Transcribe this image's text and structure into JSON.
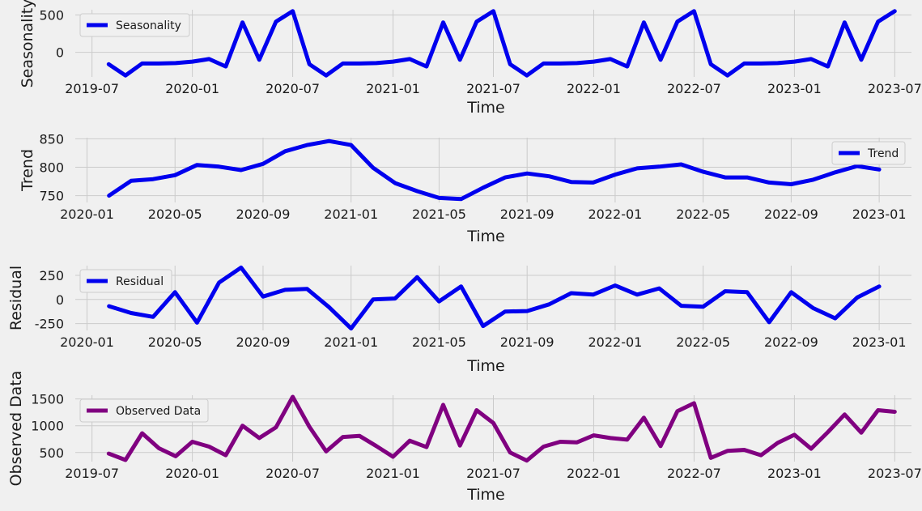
{
  "chart_data": [
    {
      "type": "line",
      "xlabel": "Time",
      "ylabel": "Seasonality",
      "ylim": [
        -330,
        570
      ],
      "yticks": [
        0,
        500
      ],
      "xlim": [
        "2019-06-01",
        "2023-08-01"
      ],
      "xticks": [
        "2019-07",
        "2020-01",
        "2020-07",
        "2021-01",
        "2021-07",
        "2022-01",
        "2022-07",
        "2023-01",
        "2023-07"
      ],
      "grid": true,
      "legend": "top-left",
      "series": [
        {
          "name": "Seasonality",
          "color": "#0000ee",
          "x": [
            "2019-08",
            "2019-09",
            "2019-10",
            "2019-11",
            "2019-12",
            "2020-01",
            "2020-02",
            "2020-03",
            "2020-04",
            "2020-05",
            "2020-06",
            "2020-07",
            "2020-08",
            "2020-09",
            "2020-10",
            "2020-11",
            "2020-12",
            "2021-01",
            "2021-02",
            "2021-03",
            "2021-04",
            "2021-05",
            "2021-06",
            "2021-07",
            "2021-08",
            "2021-09",
            "2021-10",
            "2021-11",
            "2021-12",
            "2022-01",
            "2022-02",
            "2022-03",
            "2022-04",
            "2022-05",
            "2022-06",
            "2022-07",
            "2022-08",
            "2022-09",
            "2022-10",
            "2022-11",
            "2022-12",
            "2023-01",
            "2023-02",
            "2023-03",
            "2023-04",
            "2023-05",
            "2023-06",
            "2023-07"
          ],
          "y": [
            -160,
            -310,
            -150,
            -150,
            -145,
            -125,
            -90,
            -190,
            400,
            -100,
            410,
            550,
            -160,
            -310,
            -150,
            -150,
            -145,
            -125,
            -90,
            -190,
            400,
            -100,
            410,
            550,
            -160,
            -310,
            -150,
            -150,
            -145,
            -125,
            -90,
            -190,
            400,
            -100,
            410,
            550,
            -160,
            -310,
            -150,
            -150,
            -145,
            -125,
            -90,
            -190,
            400,
            -100,
            410,
            550
          ]
        }
      ]
    },
    {
      "type": "line",
      "xlabel": "Time",
      "ylabel": "Trend",
      "ylim": [
        738,
        852
      ],
      "yticks": [
        750,
        800,
        850
      ],
      "xlim": [
        "2019-12-15",
        "2023-02-15"
      ],
      "xticks": [
        "2020-01",
        "2020-05",
        "2020-09",
        "2021-01",
        "2021-05",
        "2021-09",
        "2022-01",
        "2022-05",
        "2022-09",
        "2023-01"
      ],
      "grid": true,
      "legend": "top-right",
      "series": [
        {
          "name": "Trend",
          "color": "#0000ee",
          "x": [
            "2020-02",
            "2020-03",
            "2020-04",
            "2020-05",
            "2020-06",
            "2020-07",
            "2020-08",
            "2020-09",
            "2020-10",
            "2020-11",
            "2020-12",
            "2021-01",
            "2021-02",
            "2021-03",
            "2021-04",
            "2021-05",
            "2021-06",
            "2021-07",
            "2021-08",
            "2021-09",
            "2021-10",
            "2021-11",
            "2021-12",
            "2022-01",
            "2022-02",
            "2022-03",
            "2022-04",
            "2022-05",
            "2022-06",
            "2022-07",
            "2022-08",
            "2022-09",
            "2022-10",
            "2022-11",
            "2022-12",
            "2023-01"
          ],
          "y": [
            750,
            776,
            779,
            786,
            804,
            801,
            795,
            806,
            828,
            839,
            846,
            839,
            799,
            772,
            758,
            746,
            744,
            764,
            782,
            789,
            784,
            774,
            773,
            787,
            798,
            801,
            805,
            792,
            782,
            782,
            773,
            770,
            778,
            791,
            802,
            796
          ]
        }
      ]
    },
    {
      "type": "line",
      "xlabel": "Time",
      "ylabel": "Residual",
      "ylim": [
        -320,
        350
      ],
      "yticks": [
        -250,
        0,
        250
      ],
      "xlim": [
        "2019-12-15",
        "2023-02-15"
      ],
      "xticks": [
        "2020-01",
        "2020-05",
        "2020-09",
        "2021-01",
        "2021-05",
        "2021-09",
        "2022-01",
        "2022-05",
        "2022-09",
        "2023-01"
      ],
      "grid": true,
      "legend": "top-left",
      "series": [
        {
          "name": "Residual",
          "color": "#0000ee",
          "x": [
            "2020-02",
            "2020-03",
            "2020-04",
            "2020-05",
            "2020-06",
            "2020-07",
            "2020-08",
            "2020-09",
            "2020-10",
            "2020-11",
            "2020-12",
            "2021-01",
            "2021-02",
            "2021-03",
            "2021-04",
            "2021-05",
            "2021-06",
            "2021-07",
            "2021-08",
            "2021-09",
            "2021-10",
            "2021-11",
            "2021-12",
            "2022-01",
            "2022-02",
            "2022-03",
            "2022-04",
            "2022-05",
            "2022-06",
            "2022-07",
            "2022-08",
            "2022-09",
            "2022-10",
            "2022-11",
            "2022-12",
            "2023-01"
          ],
          "y": [
            -70,
            -140,
            -180,
            75,
            -240,
            175,
            330,
            30,
            100,
            110,
            -80,
            -300,
            0,
            10,
            230,
            -20,
            135,
            -275,
            -125,
            -120,
            -50,
            65,
            50,
            145,
            50,
            115,
            -65,
            -75,
            85,
            75,
            -235,
            75,
            -90,
            -195,
            20,
            135
          ]
        }
      ]
    },
    {
      "type": "line",
      "xlabel": "Time",
      "ylabel": "Observed Data",
      "ylim": [
        330,
        1570
      ],
      "yticks": [
        500,
        1000,
        1500
      ],
      "xlim": [
        "2019-06-01",
        "2023-08-01"
      ],
      "xticks": [
        "2019-07",
        "2020-01",
        "2020-07",
        "2021-01",
        "2021-07",
        "2022-01",
        "2022-07",
        "2023-01",
        "2023-07"
      ],
      "grid": true,
      "legend": "top-left",
      "series": [
        {
          "name": "Observed Data",
          "color": "#800080",
          "x": [
            "2019-08",
            "2019-09",
            "2019-10",
            "2019-11",
            "2019-12",
            "2020-01",
            "2020-02",
            "2020-03",
            "2020-04",
            "2020-05",
            "2020-06",
            "2020-07",
            "2020-08",
            "2020-09",
            "2020-10",
            "2020-11",
            "2020-12",
            "2021-01",
            "2021-02",
            "2021-03",
            "2021-04",
            "2021-05",
            "2021-06",
            "2021-07",
            "2021-08",
            "2021-09",
            "2021-10",
            "2021-11",
            "2021-12",
            "2022-01",
            "2022-02",
            "2022-03",
            "2022-04",
            "2022-05",
            "2022-06",
            "2022-07",
            "2022-08",
            "2022-09",
            "2022-10",
            "2022-11",
            "2022-12",
            "2023-01",
            "2023-02",
            "2023-03",
            "2023-04",
            "2023-05",
            "2023-06",
            "2023-07"
          ],
          "y": [
            480,
            360,
            860,
            580,
            430,
            700,
            610,
            450,
            1000,
            770,
            970,
            1540,
            980,
            520,
            790,
            810,
            620,
            420,
            720,
            600,
            1390,
            630,
            1290,
            1050,
            500,
            350,
            610,
            700,
            690,
            820,
            770,
            740,
            1150,
            620,
            1270,
            1420,
            400,
            530,
            550,
            450,
            680,
            830,
            570,
            880,
            1210,
            870,
            1290,
            1260
          ]
        }
      ]
    }
  ]
}
